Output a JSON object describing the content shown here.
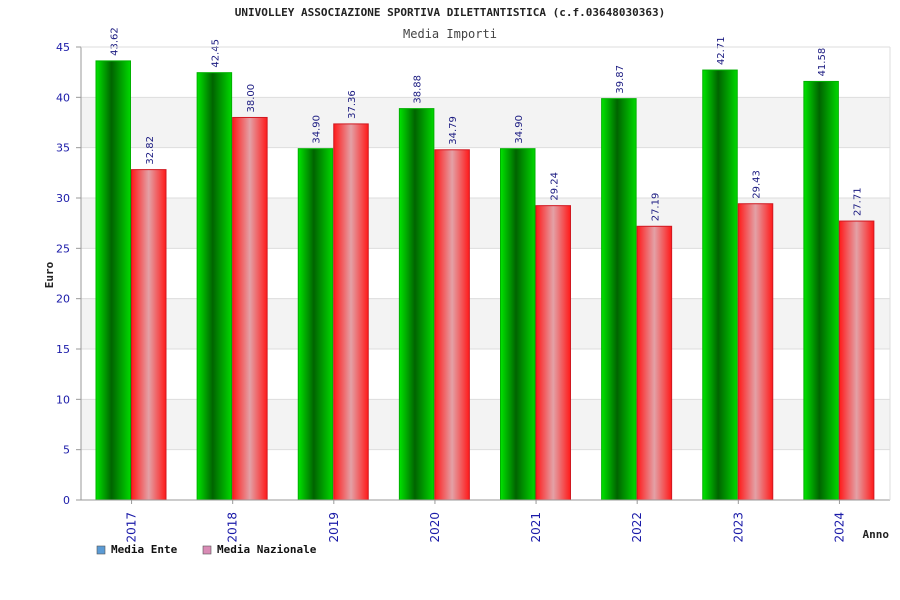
{
  "chart_data": {
    "type": "bar",
    "title": "UNIVOLLEY ASSOCIAZIONE SPORTIVA DILETTANTISTICA (c.f.03648030363)",
    "subtitle": "Media Importi",
    "xlabel": "Anno",
    "ylabel": "Euro",
    "ylim": [
      0,
      45
    ],
    "yticks": [
      0,
      5,
      10,
      15,
      20,
      25,
      30,
      35,
      40,
      45
    ],
    "grid": true,
    "legend_position": "bottom-left",
    "categories": [
      "2017",
      "2018",
      "2019",
      "2020",
      "2021",
      "2022",
      "2023",
      "2024"
    ],
    "series": [
      {
        "name": "Media Ente",
        "values": [
          43.62,
          42.45,
          34.9,
          38.88,
          34.9,
          39.87,
          42.71,
          41.58
        ],
        "labels": [
          "43.62",
          "42.45",
          "34.90",
          "38.88",
          "34.90",
          "39.87",
          "42.71",
          "41.58"
        ],
        "color": "#00c800",
        "legend_color": "#5b9bd5"
      },
      {
        "name": "Media Nazionale",
        "values": [
          32.82,
          38.0,
          37.36,
          34.79,
          29.24,
          27.19,
          29.43,
          27.71
        ],
        "labels": [
          "32.82",
          "38.00",
          "37.36",
          "34.79",
          "29.24",
          "27.19",
          "29.43",
          "27.71"
        ],
        "color": "#e8202a",
        "legend_color": "#d98bb5"
      }
    ]
  }
}
